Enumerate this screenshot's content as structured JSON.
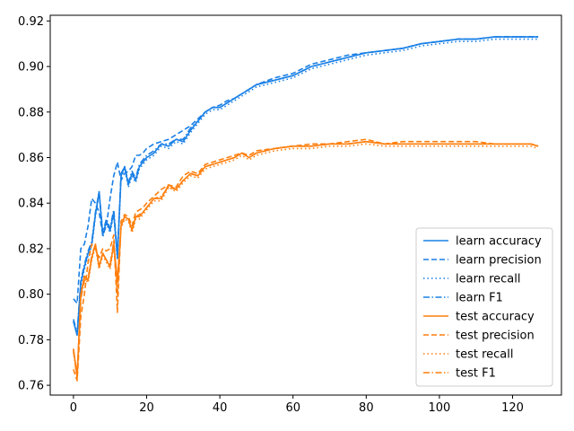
{
  "chart_data": {
    "type": "line",
    "title": "",
    "xlabel": "",
    "ylabel": "",
    "xlim": [
      -6.35,
      133.35
    ],
    "ylim": [
      0.7557,
      0.9225
    ],
    "xticks": [
      0,
      20,
      40,
      60,
      80,
      100,
      120
    ],
    "yticks": [
      0.76,
      0.78,
      0.8,
      0.82,
      0.84,
      0.86,
      0.88,
      0.9,
      0.92
    ],
    "grid": false,
    "legend_position": "lower-right",
    "colors": {
      "learn": "#1a80e6",
      "test": "#ff7f0e"
    },
    "x": [
      0,
      1,
      2,
      3,
      4,
      5,
      6,
      7,
      8,
      9,
      10,
      11,
      12,
      13,
      14,
      15,
      16,
      17,
      18,
      19,
      20,
      22,
      24,
      26,
      28,
      30,
      32,
      34,
      36,
      38,
      40,
      42,
      44,
      46,
      48,
      50,
      55,
      60,
      65,
      70,
      75,
      80,
      85,
      90,
      95,
      100,
      105,
      110,
      115,
      120,
      125,
      127
    ],
    "series": [
      {
        "name": "learn accuracy",
        "color": "learn",
        "dash": "solid",
        "values": [
          0.788,
          0.782,
          0.805,
          0.812,
          0.818,
          0.822,
          0.835,
          0.845,
          0.826,
          0.832,
          0.828,
          0.836,
          0.816,
          0.852,
          0.856,
          0.848,
          0.853,
          0.85,
          0.856,
          0.858,
          0.86,
          0.862,
          0.866,
          0.865,
          0.868,
          0.867,
          0.872,
          0.876,
          0.88,
          0.882,
          0.882,
          0.884,
          0.886,
          0.888,
          0.89,
          0.892,
          0.894,
          0.896,
          0.9,
          0.902,
          0.904,
          0.906,
          0.907,
          0.908,
          0.91,
          0.911,
          0.912,
          0.912,
          0.913,
          0.913,
          0.913,
          0.913
        ]
      },
      {
        "name": "learn precision",
        "color": "learn",
        "dash": "dashed",
        "values": [
          0.798,
          0.796,
          0.82,
          0.822,
          0.83,
          0.842,
          0.84,
          0.836,
          0.826,
          0.83,
          0.842,
          0.852,
          0.858,
          0.85,
          0.853,
          0.854,
          0.856,
          0.861,
          0.861,
          0.862,
          0.864,
          0.866,
          0.867,
          0.868,
          0.87,
          0.872,
          0.874,
          0.877,
          0.88,
          0.882,
          0.883,
          0.885,
          0.886,
          0.888,
          0.89,
          0.892,
          0.895,
          0.897,
          0.901,
          0.903,
          0.905,
          0.906,
          0.907,
          0.908,
          0.91,
          0.911,
          0.912,
          0.912,
          0.913,
          0.913,
          0.913,
          0.913
        ]
      },
      {
        "name": "learn recall",
        "color": "learn",
        "dash": "dotted",
        "values": [
          0.788,
          0.782,
          0.804,
          0.811,
          0.817,
          0.821,
          0.834,
          0.844,
          0.825,
          0.831,
          0.827,
          0.835,
          0.815,
          0.851,
          0.855,
          0.847,
          0.852,
          0.849,
          0.855,
          0.857,
          0.859,
          0.861,
          0.865,
          0.864,
          0.867,
          0.866,
          0.871,
          0.875,
          0.879,
          0.881,
          0.881,
          0.883,
          0.885,
          0.887,
          0.889,
          0.891,
          0.893,
          0.895,
          0.899,
          0.901,
          0.903,
          0.905,
          0.906,
          0.907,
          0.909,
          0.91,
          0.911,
          0.911,
          0.912,
          0.912,
          0.912,
          0.912
        ]
      },
      {
        "name": "learn F1",
        "color": "learn",
        "dash": "dashdot",
        "values": [
          0.789,
          0.783,
          0.806,
          0.813,
          0.819,
          0.823,
          0.836,
          0.845,
          0.827,
          0.833,
          0.829,
          0.837,
          0.818,
          0.853,
          0.856,
          0.849,
          0.854,
          0.851,
          0.857,
          0.859,
          0.861,
          0.863,
          0.866,
          0.866,
          0.868,
          0.868,
          0.873,
          0.876,
          0.88,
          0.882,
          0.882,
          0.884,
          0.886,
          0.888,
          0.89,
          0.892,
          0.894,
          0.896,
          0.9,
          0.902,
          0.904,
          0.906,
          0.907,
          0.908,
          0.91,
          0.911,
          0.912,
          0.912,
          0.913,
          0.913,
          0.913,
          0.913
        ]
      },
      {
        "name": "test accuracy",
        "color": "test",
        "dash": "solid",
        "values": [
          0.776,
          0.764,
          0.8,
          0.808,
          0.806,
          0.816,
          0.822,
          0.812,
          0.818,
          0.815,
          0.812,
          0.822,
          0.806,
          0.83,
          0.834,
          0.833,
          0.828,
          0.834,
          0.834,
          0.836,
          0.838,
          0.842,
          0.842,
          0.848,
          0.846,
          0.85,
          0.853,
          0.852,
          0.856,
          0.857,
          0.858,
          0.859,
          0.86,
          0.862,
          0.86,
          0.862,
          0.864,
          0.865,
          0.865,
          0.866,
          0.866,
          0.867,
          0.866,
          0.866,
          0.866,
          0.866,
          0.866,
          0.866,
          0.866,
          0.866,
          0.866,
          0.865
        ]
      },
      {
        "name": "test precision",
        "color": "test",
        "dash": "dashed",
        "values": [
          0.767,
          0.762,
          0.79,
          0.8,
          0.814,
          0.822,
          0.82,
          0.816,
          0.82,
          0.819,
          0.82,
          0.826,
          0.792,
          0.832,
          0.835,
          0.834,
          0.83,
          0.836,
          0.837,
          0.838,
          0.84,
          0.843,
          0.846,
          0.848,
          0.847,
          0.852,
          0.854,
          0.853,
          0.857,
          0.858,
          0.859,
          0.86,
          0.861,
          0.862,
          0.861,
          0.863,
          0.864,
          0.865,
          0.866,
          0.866,
          0.867,
          0.868,
          0.866,
          0.867,
          0.867,
          0.867,
          0.867,
          0.867,
          0.866,
          0.866,
          0.866,
          0.865
        ]
      },
      {
        "name": "test recall",
        "color": "test",
        "dash": "dotted",
        "values": [
          0.776,
          0.764,
          0.799,
          0.807,
          0.805,
          0.815,
          0.821,
          0.811,
          0.817,
          0.814,
          0.811,
          0.821,
          0.805,
          0.829,
          0.833,
          0.832,
          0.827,
          0.833,
          0.833,
          0.835,
          0.837,
          0.841,
          0.841,
          0.847,
          0.845,
          0.849,
          0.852,
          0.851,
          0.855,
          0.856,
          0.857,
          0.858,
          0.859,
          0.861,
          0.859,
          0.861,
          0.863,
          0.864,
          0.864,
          0.865,
          0.865,
          0.866,
          0.865,
          0.865,
          0.865,
          0.865,
          0.865,
          0.865,
          0.865,
          0.865,
          0.865,
          0.864
        ]
      },
      {
        "name": "test F1",
        "color": "test",
        "dash": "dashdot",
        "values": [
          0.775,
          0.763,
          0.798,
          0.806,
          0.807,
          0.817,
          0.822,
          0.812,
          0.818,
          0.815,
          0.813,
          0.823,
          0.8,
          0.83,
          0.834,
          0.833,
          0.828,
          0.834,
          0.835,
          0.836,
          0.838,
          0.842,
          0.843,
          0.847,
          0.846,
          0.85,
          0.853,
          0.852,
          0.856,
          0.857,
          0.858,
          0.859,
          0.86,
          0.862,
          0.86,
          0.862,
          0.864,
          0.865,
          0.865,
          0.866,
          0.866,
          0.867,
          0.866,
          0.866,
          0.866,
          0.866,
          0.866,
          0.866,
          0.866,
          0.866,
          0.866,
          0.865
        ]
      }
    ]
  }
}
